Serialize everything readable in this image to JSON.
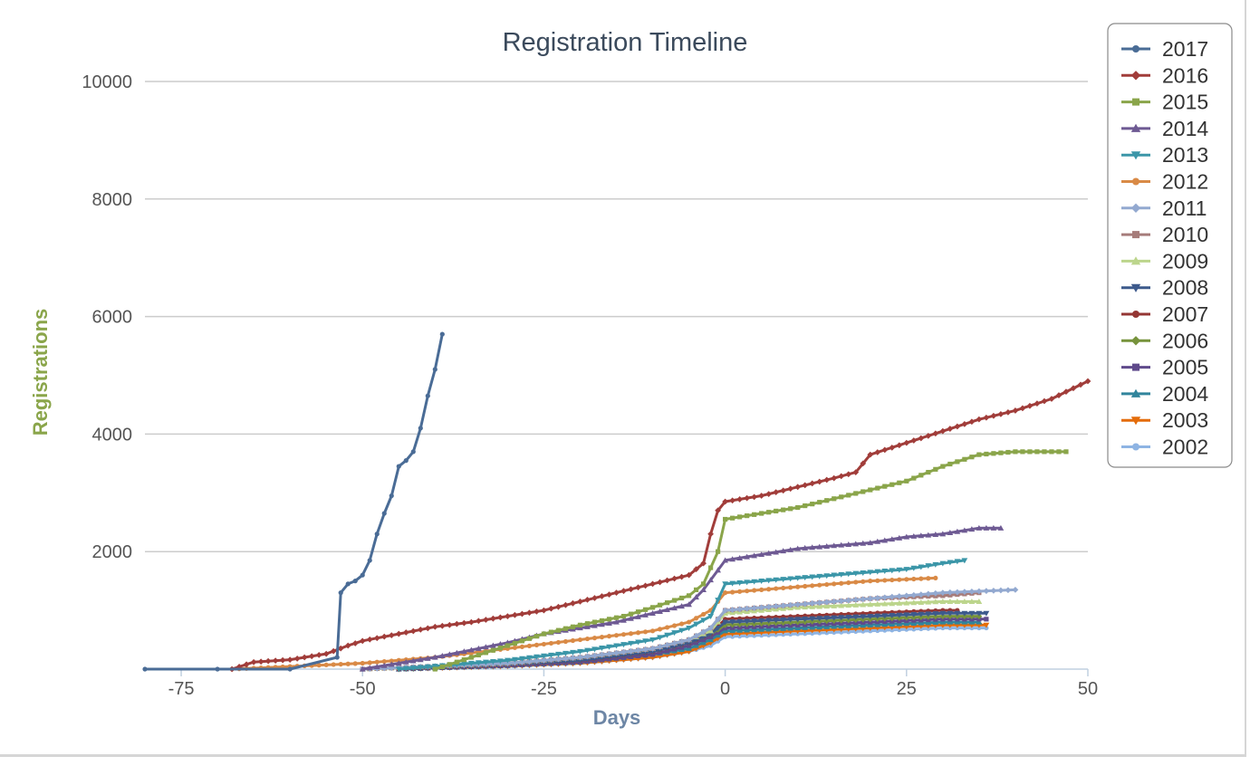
{
  "chart_data": {
    "type": "line",
    "title": "Registration Timeline",
    "xlabel": "Days",
    "ylabel": "Registrations",
    "xlim": [
      -80,
      50
    ],
    "ylim": [
      0,
      10000
    ],
    "x_ticks": [
      -75,
      -50,
      -25,
      0,
      25,
      50
    ],
    "y_ticks": [
      2000,
      4000,
      6000,
      8000,
      10000
    ],
    "grid": true,
    "legend_position": "top-right",
    "series": [
      {
        "name": "2017",
        "color": "#4a6c96",
        "marker": "circle",
        "points": [
          [
            -80,
            0
          ],
          [
            -70,
            0
          ],
          [
            -60,
            0
          ],
          [
            -53.5,
            200
          ],
          [
            -53,
            1300
          ],
          [
            -52,
            1450
          ],
          [
            -51,
            1500
          ],
          [
            -50,
            1600
          ],
          [
            -49,
            1850
          ],
          [
            -48,
            2300
          ],
          [
            -47,
            2650
          ],
          [
            -46,
            2950
          ],
          [
            -45,
            3450
          ],
          [
            -44,
            3550
          ],
          [
            -43,
            3700
          ],
          [
            -42,
            4100
          ],
          [
            -41,
            4650
          ],
          [
            -40,
            5100
          ],
          [
            -39,
            5700
          ]
        ]
      },
      {
        "name": "2016",
        "color": "#a13d3a",
        "marker": "diamond",
        "points": [
          [
            -68,
            0
          ],
          [
            -65,
            120
          ],
          [
            -60,
            160
          ],
          [
            -55,
            260
          ],
          [
            -52,
            400
          ],
          [
            -50,
            480
          ],
          [
            -45,
            600
          ],
          [
            -40,
            720
          ],
          [
            -35,
            800
          ],
          [
            -30,
            900
          ],
          [
            -25,
            1000
          ],
          [
            -20,
            1150
          ],
          [
            -15,
            1300
          ],
          [
            -10,
            1450
          ],
          [
            -5,
            1600
          ],
          [
            -3,
            1800
          ],
          [
            -2,
            2300
          ],
          [
            -1,
            2700
          ],
          [
            0,
            2850
          ],
          [
            5,
            2950
          ],
          [
            10,
            3100
          ],
          [
            15,
            3250
          ],
          [
            18,
            3350
          ],
          [
            20,
            3650
          ],
          [
            25,
            3850
          ],
          [
            30,
            4050
          ],
          [
            35,
            4250
          ],
          [
            40,
            4400
          ],
          [
            45,
            4600
          ],
          [
            50,
            4900
          ]
        ]
      },
      {
        "name": "2015",
        "color": "#8aa54a",
        "marker": "square",
        "points": [
          [
            -40,
            0
          ],
          [
            -30,
            400
          ],
          [
            -25,
            600
          ],
          [
            -20,
            750
          ],
          [
            -14,
            900
          ],
          [
            -10,
            1050
          ],
          [
            -5,
            1250
          ],
          [
            -3,
            1450
          ],
          [
            -1,
            2000
          ],
          [
            0,
            2550
          ],
          [
            5,
            2650
          ],
          [
            10,
            2750
          ],
          [
            15,
            2900
          ],
          [
            20,
            3050
          ],
          [
            25,
            3200
          ],
          [
            30,
            3450
          ],
          [
            35,
            3650
          ],
          [
            40,
            3700
          ],
          [
            47,
            3700
          ]
        ]
      },
      {
        "name": "2014",
        "color": "#6e5a93",
        "marker": "triangle",
        "points": [
          [
            -50,
            0
          ],
          [
            -40,
            200
          ],
          [
            -30,
            450
          ],
          [
            -25,
            600
          ],
          [
            -20,
            700
          ],
          [
            -15,
            800
          ],
          [
            -10,
            950
          ],
          [
            -5,
            1100
          ],
          [
            -3,
            1350
          ],
          [
            0,
            1850
          ],
          [
            5,
            1950
          ],
          [
            10,
            2050
          ],
          [
            15,
            2100
          ],
          [
            20,
            2150
          ],
          [
            25,
            2250
          ],
          [
            30,
            2300
          ],
          [
            35,
            2400
          ],
          [
            38,
            2400
          ]
        ]
      },
      {
        "name": "2013",
        "color": "#3b96a8",
        "marker": "triangle-down",
        "points": [
          [
            -45,
            0
          ],
          [
            -30,
            150
          ],
          [
            -20,
            300
          ],
          [
            -10,
            500
          ],
          [
            -5,
            700
          ],
          [
            -2,
            900
          ],
          [
            0,
            1450
          ],
          [
            10,
            1550
          ],
          [
            20,
            1650
          ],
          [
            25,
            1700
          ],
          [
            30,
            1800
          ],
          [
            33,
            1850
          ]
        ]
      },
      {
        "name": "2012",
        "color": "#d98a46",
        "marker": "circle",
        "points": [
          [
            -68,
            0
          ],
          [
            -50,
            100
          ],
          [
            -40,
            200
          ],
          [
            -30,
            350
          ],
          [
            -20,
            500
          ],
          [
            -10,
            650
          ],
          [
            -5,
            800
          ],
          [
            -2,
            1000
          ],
          [
            0,
            1300
          ],
          [
            10,
            1400
          ],
          [
            20,
            1500
          ],
          [
            29,
            1550
          ]
        ]
      },
      {
        "name": "2011",
        "color": "#93a9d0",
        "marker": "diamond",
        "points": [
          [
            -50,
            0
          ],
          [
            -30,
            100
          ],
          [
            -20,
            200
          ],
          [
            -10,
            350
          ],
          [
            -5,
            500
          ],
          [
            -2,
            700
          ],
          [
            0,
            1000
          ],
          [
            10,
            1100
          ],
          [
            20,
            1200
          ],
          [
            30,
            1300
          ],
          [
            40,
            1350
          ]
        ]
      },
      {
        "name": "2010",
        "color": "#a67c7a",
        "marker": "square",
        "points": [
          [
            -50,
            0
          ],
          [
            -30,
            100
          ],
          [
            -20,
            200
          ],
          [
            -10,
            350
          ],
          [
            -5,
            500
          ],
          [
            -2,
            700
          ],
          [
            0,
            1000
          ],
          [
            10,
            1100
          ],
          [
            20,
            1200
          ],
          [
            30,
            1250
          ],
          [
            35,
            1300
          ]
        ]
      },
      {
        "name": "2009",
        "color": "#bcd58c",
        "marker": "triangle",
        "points": [
          [
            -50,
            0
          ],
          [
            -30,
            100
          ],
          [
            -20,
            200
          ],
          [
            -10,
            350
          ],
          [
            -5,
            500
          ],
          [
            -2,
            650
          ],
          [
            0,
            950
          ],
          [
            10,
            1050
          ],
          [
            20,
            1100
          ],
          [
            30,
            1150
          ],
          [
            35,
            1150
          ]
        ]
      },
      {
        "name": "2008",
        "color": "#3d5a8c",
        "marker": "triangle-down",
        "points": [
          [
            -45,
            0
          ],
          [
            -30,
            80
          ],
          [
            -20,
            150
          ],
          [
            -10,
            300
          ],
          [
            -5,
            450
          ],
          [
            -2,
            600
          ],
          [
            0,
            800
          ],
          [
            10,
            850
          ],
          [
            20,
            900
          ],
          [
            30,
            950
          ],
          [
            36,
            950
          ]
        ]
      },
      {
        "name": "2007",
        "color": "#943634",
        "marker": "circle",
        "points": [
          [
            -45,
            0
          ],
          [
            -30,
            80
          ],
          [
            -20,
            150
          ],
          [
            -10,
            300
          ],
          [
            -5,
            450
          ],
          [
            -2,
            600
          ],
          [
            0,
            850
          ],
          [
            10,
            900
          ],
          [
            20,
            950
          ],
          [
            30,
            1000
          ],
          [
            32,
            1000
          ]
        ]
      },
      {
        "name": "2006",
        "color": "#77933c",
        "marker": "diamond",
        "points": [
          [
            -45,
            0
          ],
          [
            -30,
            80
          ],
          [
            -20,
            150
          ],
          [
            -10,
            300
          ],
          [
            -5,
            450
          ],
          [
            -2,
            600
          ],
          [
            0,
            750
          ],
          [
            10,
            800
          ],
          [
            20,
            850
          ],
          [
            30,
            900
          ],
          [
            35,
            900
          ]
        ]
      },
      {
        "name": "2005",
        "color": "#5f4a8b",
        "marker": "square",
        "points": [
          [
            -45,
            0
          ],
          [
            -30,
            60
          ],
          [
            -20,
            120
          ],
          [
            -10,
            250
          ],
          [
            -5,
            400
          ],
          [
            -2,
            550
          ],
          [
            0,
            700
          ],
          [
            10,
            750
          ],
          [
            20,
            800
          ],
          [
            30,
            850
          ],
          [
            36,
            850
          ]
        ]
      },
      {
        "name": "2004",
        "color": "#31859c",
        "marker": "triangle",
        "points": [
          [
            -45,
            0
          ],
          [
            -30,
            60
          ],
          [
            -20,
            120
          ],
          [
            -10,
            250
          ],
          [
            -5,
            350
          ],
          [
            -2,
            500
          ],
          [
            0,
            650
          ],
          [
            10,
            700
          ],
          [
            20,
            750
          ],
          [
            30,
            800
          ],
          [
            35,
            800
          ]
        ]
      },
      {
        "name": "2003",
        "color": "#e46c0a",
        "marker": "triangle-down",
        "points": [
          [
            -45,
            0
          ],
          [
            -30,
            50
          ],
          [
            -20,
            100
          ],
          [
            -10,
            200
          ],
          [
            -5,
            300
          ],
          [
            -2,
            450
          ],
          [
            0,
            600
          ],
          [
            10,
            650
          ],
          [
            20,
            700
          ],
          [
            30,
            750
          ],
          [
            36,
            750
          ]
        ]
      },
      {
        "name": "2002",
        "color": "#8eb4e3",
        "marker": "circle",
        "points": [
          [
            -45,
            0
          ],
          [
            -30,
            50
          ],
          [
            -20,
            100
          ],
          [
            -10,
            200
          ],
          [
            -5,
            300
          ],
          [
            -2,
            400
          ],
          [
            0,
            550
          ],
          [
            10,
            600
          ],
          [
            20,
            650
          ],
          [
            30,
            700
          ],
          [
            36,
            700
          ]
        ]
      }
    ]
  }
}
